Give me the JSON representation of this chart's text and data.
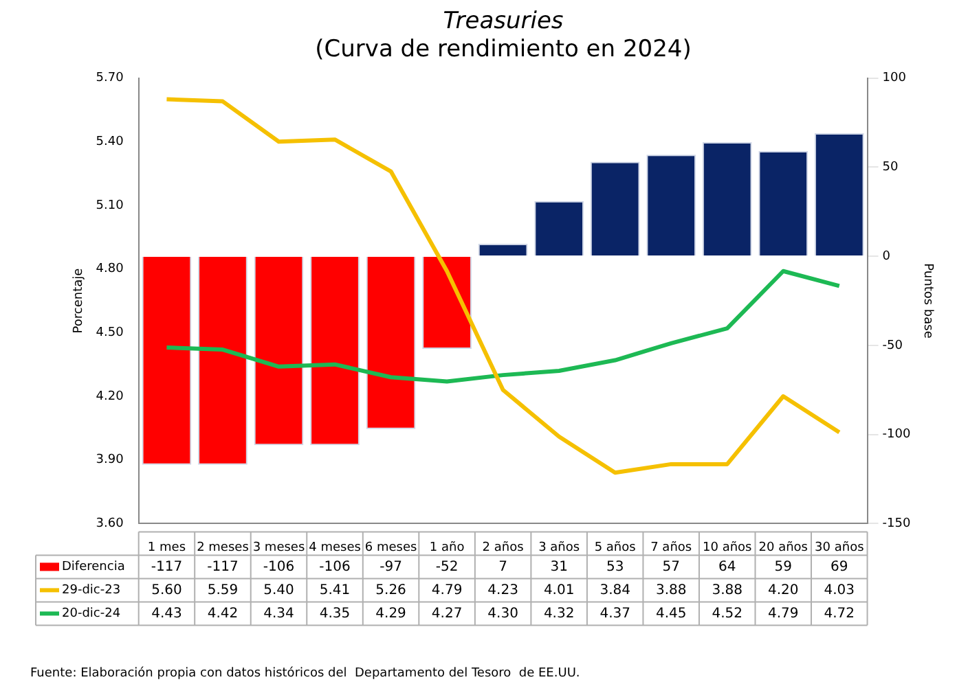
{
  "chart_data": {
    "type": "bar",
    "title": "Treasuries",
    "subtitle": "(Curva de rendimiento en 2024)",
    "ylabel": "Porcentaje",
    "y2label": "Puntos base",
    "categories": [
      "1 mes",
      "2 meses",
      "3 meses",
      "4 meses",
      "6 meses",
      "1 año",
      "2 años",
      "3 años",
      "5 años",
      "7 años",
      "10 años",
      "20 años",
      "30 años"
    ],
    "series": [
      {
        "name": "Diferencia",
        "axis": "y2",
        "colors": [
          "#ff0000",
          "#ff0000",
          "#ff0000",
          "#ff0000",
          "#ff0000",
          "#ff0000",
          "#0a2466",
          "#0a2466",
          "#0a2466",
          "#0a2466",
          "#0a2466",
          "#0a2466",
          "#0a2466"
        ],
        "color": "#ff0000",
        "values": [
          -117,
          -117,
          -106,
          -106,
          -97,
          -52,
          7,
          31,
          53,
          57,
          64,
          59,
          69
        ],
        "value_labels": [
          "-117",
          "-117",
          "-106",
          "-106",
          "-97",
          "-52",
          "7",
          "31",
          "53",
          "57",
          "64",
          "59",
          "69"
        ]
      },
      {
        "name": "29-dic-23",
        "type": "line",
        "color": "#f5c000",
        "values": [
          5.6,
          5.59,
          5.4,
          5.41,
          5.26,
          4.79,
          4.23,
          4.01,
          3.84,
          3.88,
          3.88,
          4.2,
          4.03
        ],
        "value_labels": [
          "5.60",
          "5.59",
          "5.40",
          "5.41",
          "5.26",
          "4.79",
          "4.23",
          "4.01",
          "3.84",
          "3.88",
          "3.88",
          "4.20",
          "4.03"
        ]
      },
      {
        "name": "20-dic-24",
        "type": "line",
        "color": "#1db954",
        "values": [
          4.43,
          4.42,
          4.34,
          4.35,
          4.29,
          4.27,
          4.3,
          4.32,
          4.37,
          4.45,
          4.52,
          4.79,
          4.72
        ],
        "value_labels": [
          "4.43",
          "4.42",
          "4.34",
          "4.35",
          "4.29",
          "4.27",
          "4.30",
          "4.32",
          "4.37",
          "4.45",
          "4.52",
          "4.79",
          "4.72"
        ]
      }
    ],
    "ylim": [
      3.6,
      5.7
    ],
    "yticks": [
      {
        "value": 3.6,
        "label": "3.60"
      },
      {
        "value": 3.9,
        "label": "3.90"
      },
      {
        "value": 4.2,
        "label": "4.20"
      },
      {
        "value": 4.5,
        "label": "4.50"
      },
      {
        "value": 4.8,
        "label": "4.80"
      },
      {
        "value": 5.1,
        "label": "5.10"
      },
      {
        "value": 5.4,
        "label": "5.40"
      },
      {
        "value": 5.7,
        "label": "5.70"
      }
    ],
    "y2lim": [
      -150,
      100
    ],
    "y2ticks": [
      -150,
      -100,
      -50,
      0,
      50,
      100
    ],
    "grid": false,
    "legend": "bottom",
    "marker": "none",
    "line_style": "solid",
    "annotations": [
      "Fuente: Elaboración propia con datos históricos del  Departamento del Tesoro  de EE.UU."
    ]
  }
}
